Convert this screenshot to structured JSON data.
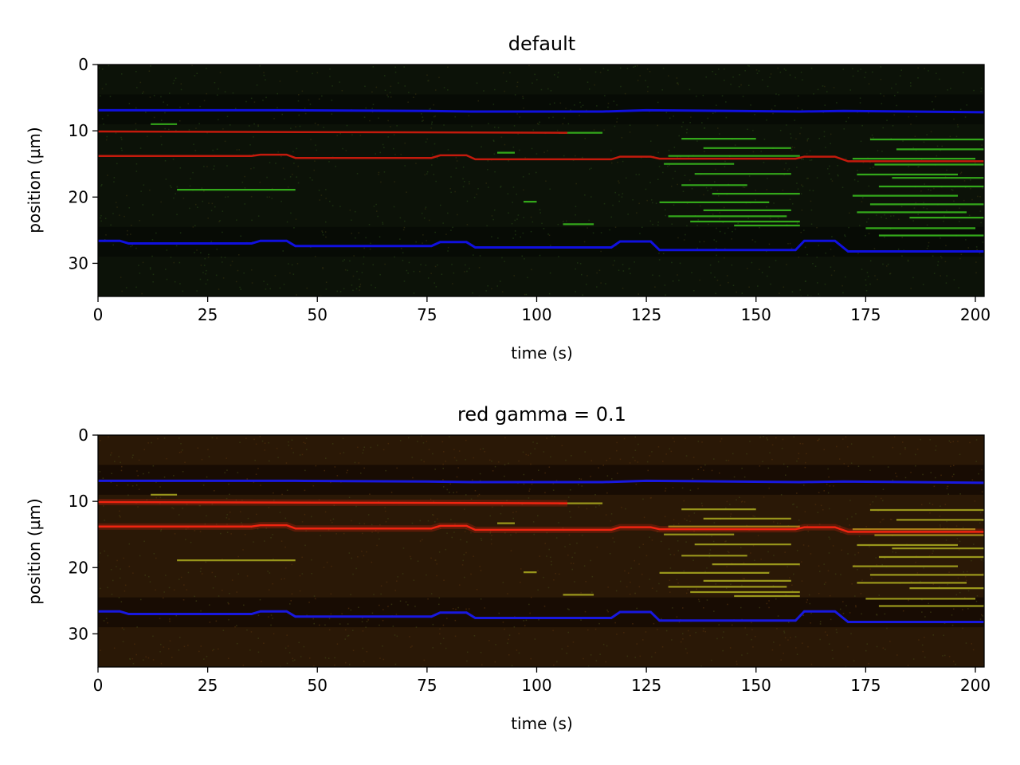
{
  "figure": {
    "background": "#ffffff"
  },
  "chart_data": [
    {
      "type": "heatmap",
      "title": "default",
      "xlabel": "time (s)",
      "ylabel": "position (µm)",
      "xlim": [
        0,
        202
      ],
      "ylim": [
        35,
        0
      ],
      "xticks": [
        "0",
        "25",
        "50",
        "75",
        "100",
        "125",
        "150",
        "175",
        "200"
      ],
      "yticks": [
        "0",
        "10",
        "20",
        "30"
      ],
      "background": "#0c1208",
      "dark_band_color": "#070a05",
      "colors": {
        "blue": "#1010e0",
        "red": "#c41a0c",
        "green": "#38b81c"
      },
      "red_glow": false,
      "blue_traces": [
        {
          "x": [
            0,
            45,
            75,
            85,
            115,
            125,
            160,
            170,
            202
          ],
          "y": [
            6.9,
            6.9,
            7.0,
            7.1,
            7.1,
            6.9,
            7.1,
            7.0,
            7.2
          ]
        },
        {
          "x": [
            0,
            5,
            7,
            35,
            37,
            43,
            45,
            76,
            78,
            84,
            86,
            117,
            119,
            126,
            128,
            159,
            161,
            168,
            171,
            202
          ],
          "y": [
            26.6,
            26.6,
            27.0,
            27.0,
            26.6,
            26.6,
            27.4,
            27.4,
            26.8,
            26.8,
            27.6,
            27.6,
            26.7,
            26.7,
            28.0,
            28.0,
            26.6,
            26.6,
            28.2,
            28.2
          ]
        }
      ],
      "red_traces": [
        {
          "x": [
            0,
            107
          ],
          "y": [
            10.1,
            10.3
          ]
        },
        {
          "x": [
            0,
            35,
            37,
            43,
            45,
            76,
            78,
            84,
            86,
            117,
            119,
            126,
            128,
            159,
            161,
            168,
            171,
            202
          ],
          "y": [
            13.8,
            13.8,
            13.6,
            13.6,
            14.1,
            14.1,
            13.7,
            13.7,
            14.3,
            14.3,
            13.9,
            13.9,
            14.2,
            14.2,
            13.9,
            13.9,
            14.6,
            14.6
          ]
        }
      ],
      "green_segments": [
        {
          "x": [
            18,
            45
          ],
          "y": 18.9
        },
        {
          "x": [
            12,
            18
          ],
          "y": 9.0
        },
        {
          "x": [
            105,
            115
          ],
          "y": 10.3
        },
        {
          "x": [
            97,
            100
          ],
          "y": 20.7
        },
        {
          "x": [
            106,
            113
          ],
          "y": 24.1
        },
        {
          "x": [
            91,
            95
          ],
          "y": 13.3
        },
        {
          "x": [
            130,
            160
          ],
          "y": 13.8
        },
        {
          "x": [
            133,
            150
          ],
          "y": 11.2
        },
        {
          "x": [
            138,
            158
          ],
          "y": 12.6
        },
        {
          "x": [
            129,
            145
          ],
          "y": 15.0
        },
        {
          "x": [
            136,
            158
          ],
          "y": 16.5
        },
        {
          "x": [
            133,
            148
          ],
          "y": 18.2
        },
        {
          "x": [
            140,
            160
          ],
          "y": 19.5
        },
        {
          "x": [
            128,
            153
          ],
          "y": 20.8
        },
        {
          "x": [
            138,
            158
          ],
          "y": 22.0
        },
        {
          "x": [
            130,
            157
          ],
          "y": 22.9
        },
        {
          "x": [
            135,
            160
          ],
          "y": 23.7
        },
        {
          "x": [
            145,
            160
          ],
          "y": 24.3
        },
        {
          "x": [
            176,
            202
          ],
          "y": 11.3
        },
        {
          "x": [
            182,
            202
          ],
          "y": 12.8
        },
        {
          "x": [
            172,
            200
          ],
          "y": 14.2
        },
        {
          "x": [
            177,
            202
          ],
          "y": 15.1
        },
        {
          "x": [
            173,
            196
          ],
          "y": 16.6
        },
        {
          "x": [
            181,
            202
          ],
          "y": 17.1
        },
        {
          "x": [
            178,
            202
          ],
          "y": 18.4
        },
        {
          "x": [
            172,
            196
          ],
          "y": 19.8
        },
        {
          "x": [
            176,
            202
          ],
          "y": 21.1
        },
        {
          "x": [
            173,
            198
          ],
          "y": 22.3
        },
        {
          "x": [
            185,
            202
          ],
          "y": 23.1
        },
        {
          "x": [
            175,
            200
          ],
          "y": 24.7
        },
        {
          "x": [
            178,
            202
          ],
          "y": 25.8
        }
      ]
    },
    {
      "type": "heatmap",
      "title": "red gamma = 0.1",
      "xlabel": "time (s)",
      "ylabel": "position (µm)",
      "xlim": [
        0,
        202
      ],
      "ylim": [
        35,
        0
      ],
      "xticks": [
        "0",
        "25",
        "50",
        "75",
        "100",
        "125",
        "150",
        "175",
        "200"
      ],
      "yticks": [
        "0",
        "10",
        "20",
        "30"
      ],
      "background": "#2a1806",
      "dark_band_color": "#150b04",
      "colors": {
        "blue": "#1818e0",
        "red": "#ef2410",
        "green": "#a6a41e"
      },
      "red_glow": true,
      "blue_traces": [
        {
          "x": [
            0,
            45,
            75,
            85,
            115,
            125,
            160,
            170,
            202
          ],
          "y": [
            6.9,
            6.9,
            7.0,
            7.1,
            7.1,
            6.9,
            7.1,
            7.0,
            7.2
          ]
        },
        {
          "x": [
            0,
            5,
            7,
            35,
            37,
            43,
            45,
            76,
            78,
            84,
            86,
            117,
            119,
            126,
            128,
            159,
            161,
            168,
            171,
            202
          ],
          "y": [
            26.6,
            26.6,
            27.0,
            27.0,
            26.6,
            26.6,
            27.4,
            27.4,
            26.8,
            26.8,
            27.6,
            27.6,
            26.7,
            26.7,
            28.0,
            28.0,
            26.6,
            26.6,
            28.2,
            28.2
          ]
        }
      ],
      "red_traces": [
        {
          "x": [
            0,
            107
          ],
          "y": [
            10.1,
            10.3
          ]
        },
        {
          "x": [
            0,
            35,
            37,
            43,
            45,
            76,
            78,
            84,
            86,
            117,
            119,
            126,
            128,
            159,
            161,
            168,
            171,
            202
          ],
          "y": [
            13.8,
            13.8,
            13.6,
            13.6,
            14.1,
            14.1,
            13.7,
            13.7,
            14.3,
            14.3,
            13.9,
            13.9,
            14.2,
            14.2,
            13.9,
            13.9,
            14.6,
            14.6
          ]
        }
      ],
      "green_segments": [
        {
          "x": [
            18,
            45
          ],
          "y": 18.9
        },
        {
          "x": [
            12,
            18
          ],
          "y": 9.0
        },
        {
          "x": [
            105,
            115
          ],
          "y": 10.3
        },
        {
          "x": [
            97,
            100
          ],
          "y": 20.7
        },
        {
          "x": [
            106,
            113
          ],
          "y": 24.1
        },
        {
          "x": [
            91,
            95
          ],
          "y": 13.3
        },
        {
          "x": [
            130,
            160
          ],
          "y": 13.8
        },
        {
          "x": [
            133,
            150
          ],
          "y": 11.2
        },
        {
          "x": [
            138,
            158
          ],
          "y": 12.6
        },
        {
          "x": [
            129,
            145
          ],
          "y": 15.0
        },
        {
          "x": [
            136,
            158
          ],
          "y": 16.5
        },
        {
          "x": [
            133,
            148
          ],
          "y": 18.2
        },
        {
          "x": [
            140,
            160
          ],
          "y": 19.5
        },
        {
          "x": [
            128,
            153
          ],
          "y": 20.8
        },
        {
          "x": [
            138,
            158
          ],
          "y": 22.0
        },
        {
          "x": [
            130,
            157
          ],
          "y": 22.9
        },
        {
          "x": [
            135,
            160
          ],
          "y": 23.7
        },
        {
          "x": [
            145,
            160
          ],
          "y": 24.3
        },
        {
          "x": [
            176,
            202
          ],
          "y": 11.3
        },
        {
          "x": [
            182,
            202
          ],
          "y": 12.8
        },
        {
          "x": [
            172,
            200
          ],
          "y": 14.2
        },
        {
          "x": [
            177,
            202
          ],
          "y": 15.1
        },
        {
          "x": [
            173,
            196
          ],
          "y": 16.6
        },
        {
          "x": [
            181,
            202
          ],
          "y": 17.1
        },
        {
          "x": [
            178,
            202
          ],
          "y": 18.4
        },
        {
          "x": [
            172,
            196
          ],
          "y": 19.8
        },
        {
          "x": [
            176,
            202
          ],
          "y": 21.1
        },
        {
          "x": [
            173,
            198
          ],
          "y": 22.3
        },
        {
          "x": [
            185,
            202
          ],
          "y": 23.1
        },
        {
          "x": [
            175,
            200
          ],
          "y": 24.7
        },
        {
          "x": [
            178,
            202
          ],
          "y": 25.8
        }
      ]
    }
  ]
}
